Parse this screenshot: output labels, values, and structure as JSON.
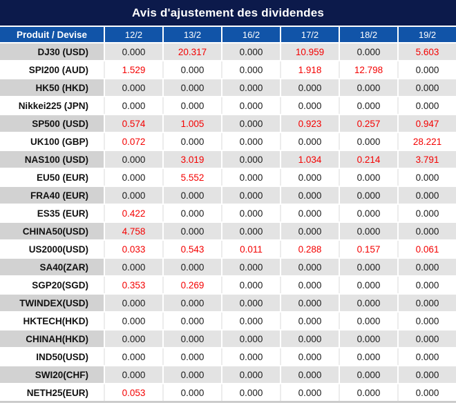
{
  "title": "Avis d'ajustement des dividendes",
  "colors": {
    "title_bg": "#0c1a4b",
    "header_bg": "#1154a8",
    "row_gray": "#e3e3e3",
    "row_gray_label": "#d2d2d2",
    "value_color": "#1a1a1a",
    "value_nonzero": "#f40000"
  },
  "table": {
    "columns": [
      "Produit / Devise",
      "12/2",
      "13/2",
      "16/2",
      "17/2",
      "18/2",
      "19/2"
    ],
    "rows": [
      {
        "product": "DJ30 (USD)",
        "values": [
          "0.000",
          "20.317",
          "0.000",
          "10.959",
          "0.000",
          "5.603"
        ]
      },
      {
        "product": "SPI200 (AUD)",
        "values": [
          "1.529",
          "0.000",
          "0.000",
          "1.918",
          "12.798",
          "0.000"
        ]
      },
      {
        "product": "HK50 (HKD)",
        "values": [
          "0.000",
          "0.000",
          "0.000",
          "0.000",
          "0.000",
          "0.000"
        ]
      },
      {
        "product": "Nikkei225 (JPN)",
        "values": [
          "0.000",
          "0.000",
          "0.000",
          "0.000",
          "0.000",
          "0.000"
        ]
      },
      {
        "product": "SP500 (USD)",
        "values": [
          "0.574",
          "1.005",
          "0.000",
          "0.923",
          "0.257",
          "0.947"
        ]
      },
      {
        "product": "UK100 (GBP)",
        "values": [
          "0.072",
          "0.000",
          "0.000",
          "0.000",
          "0.000",
          "28.221"
        ]
      },
      {
        "product": "NAS100 (USD)",
        "values": [
          "0.000",
          "3.019",
          "0.000",
          "1.034",
          "0.214",
          "3.791"
        ]
      },
      {
        "product": "EU50 (EUR)",
        "values": [
          "0.000",
          "5.552",
          "0.000",
          "0.000",
          "0.000",
          "0.000"
        ]
      },
      {
        "product": "FRA40 (EUR)",
        "values": [
          "0.000",
          "0.000",
          "0.000",
          "0.000",
          "0.000",
          "0.000"
        ]
      },
      {
        "product": "ES35 (EUR)",
        "values": [
          "0.422",
          "0.000",
          "0.000",
          "0.000",
          "0.000",
          "0.000"
        ]
      },
      {
        "product": "CHINA50(USD)",
        "values": [
          "4.758",
          "0.000",
          "0.000",
          "0.000",
          "0.000",
          "0.000"
        ]
      },
      {
        "product": "US2000(USD)",
        "values": [
          "0.033",
          "0.543",
          "0.011",
          "0.288",
          "0.157",
          "0.061"
        ]
      },
      {
        "product": "SA40(ZAR)",
        "values": [
          "0.000",
          "0.000",
          "0.000",
          "0.000",
          "0.000",
          "0.000"
        ]
      },
      {
        "product": "SGP20(SGD)",
        "values": [
          "0.353",
          "0.269",
          "0.000",
          "0.000",
          "0.000",
          "0.000"
        ]
      },
      {
        "product": "TWINDEX(USD)",
        "values": [
          "0.000",
          "0.000",
          "0.000",
          "0.000",
          "0.000",
          "0.000"
        ]
      },
      {
        "product": "HKTECH(HKD)",
        "values": [
          "0.000",
          "0.000",
          "0.000",
          "0.000",
          "0.000",
          "0.000"
        ]
      },
      {
        "product": "CHINAH(HKD)",
        "values": [
          "0.000",
          "0.000",
          "0.000",
          "0.000",
          "0.000",
          "0.000"
        ]
      },
      {
        "product": "IND50(USD)",
        "values": [
          "0.000",
          "0.000",
          "0.000",
          "0.000",
          "0.000",
          "0.000"
        ]
      },
      {
        "product": "SWI20(CHF)",
        "values": [
          "0.000",
          "0.000",
          "0.000",
          "0.000",
          "0.000",
          "0.000"
        ]
      },
      {
        "product": "NETH25(EUR)",
        "values": [
          "0.053",
          "0.000",
          "0.000",
          "0.000",
          "0.000",
          "0.000"
        ]
      }
    ]
  }
}
